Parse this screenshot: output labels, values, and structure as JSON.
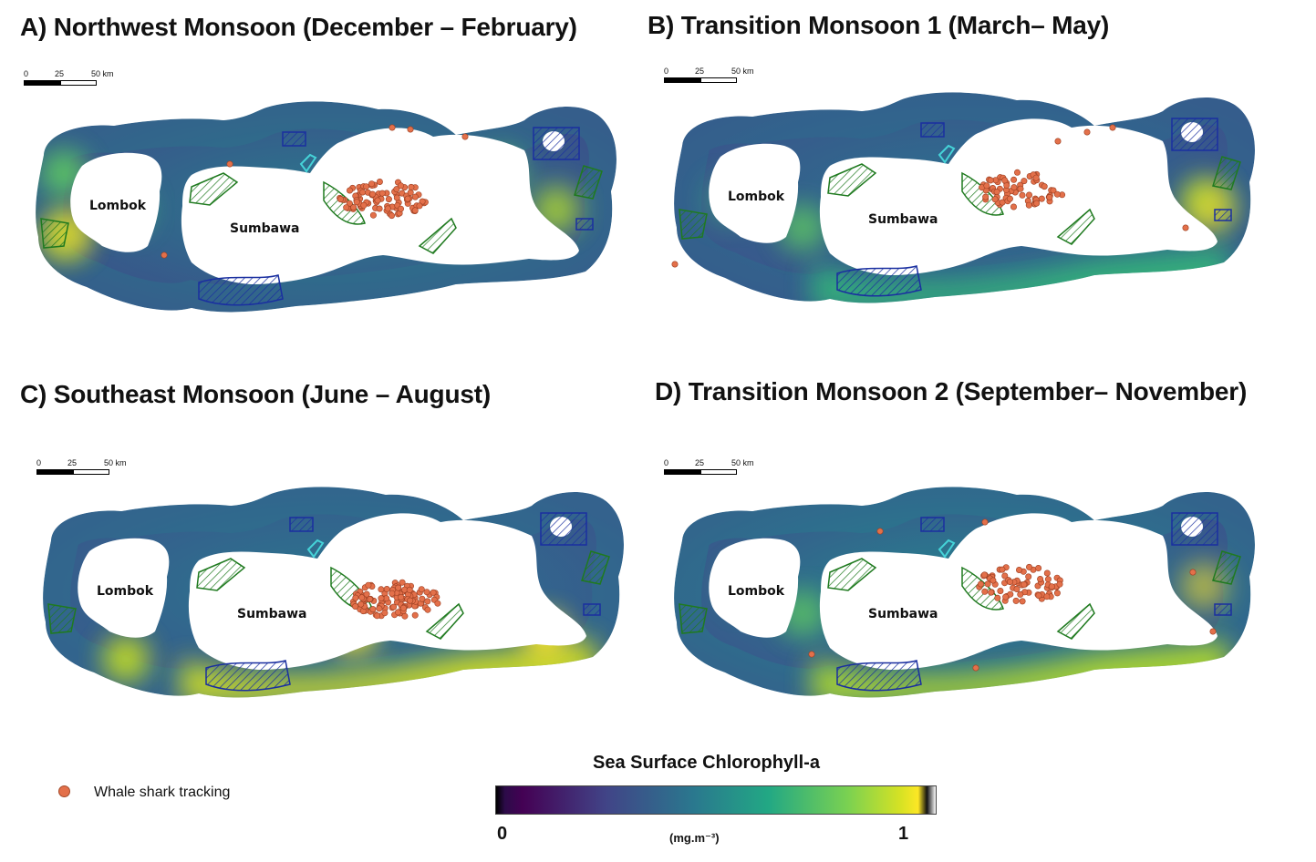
{
  "panels": [
    {
      "id": "A",
      "title": "A) Northwest Monsoon (December – February)",
      "season": "nw"
    },
    {
      "id": "B",
      "title": "B) Transition Monsoon 1 (March– May)",
      "season": "t1"
    },
    {
      "id": "C",
      "title": "C) Southeast Monsoon (June – August)",
      "season": "se"
    },
    {
      "id": "D",
      "title": "D) Transition Monsoon 2 (September– November)",
      "season": "t2"
    }
  ],
  "islands": {
    "west": "Lombok",
    "east": "Sumbawa"
  },
  "scalebar": {
    "ticks": [
      "0",
      "25",
      "50 km"
    ]
  },
  "legend": {
    "title": "Sea Surface Chlorophyll-a",
    "min": "0",
    "max": "1",
    "unit": "(mg.m⁻³)",
    "marker_label": "Whale shark tracking",
    "marker_color": "#e3704a"
  },
  "colors": {
    "mpa_green": "#1f7a1f",
    "mpa_blue": "#1a2fa0",
    "cyan": "#45d3d8"
  }
}
